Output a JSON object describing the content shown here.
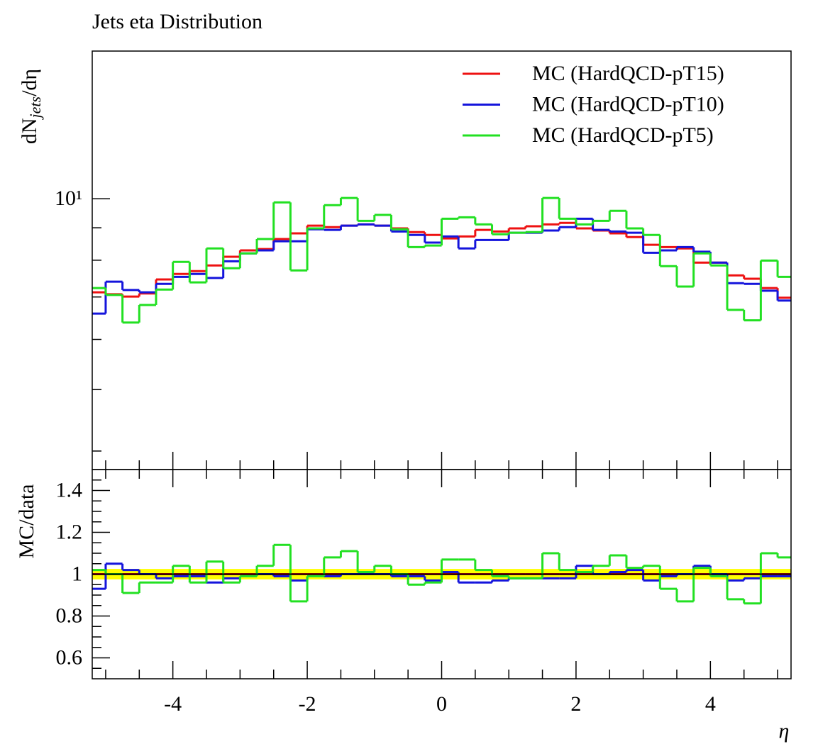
{
  "chart_data": [
    {
      "type": "histogram",
      "title": "Jets eta Distribution",
      "ylabel": {
        "main": "dN",
        "sub": "jets",
        "rest": "/dη"
      },
      "log_y": true,
      "legend": "top-right",
      "bins": [
        -5.2,
        -5,
        -4.75,
        -4.5,
        -4.25,
        -4,
        -3.75,
        -3.5,
        -3.25,
        -3,
        -2.75,
        -2.5,
        -2.25,
        -2,
        -1.75,
        -1.5,
        -1.25,
        -1,
        -0.75,
        -0.5,
        -0.25,
        0,
        0.25,
        0.5,
        0.75,
        1,
        1.25,
        1.5,
        1.75,
        2,
        2.25,
        2.5,
        2.75,
        3,
        3.25,
        3.5,
        3.75,
        4,
        4.25,
        4.5,
        4.75,
        5,
        5.2
      ],
      "xlim": [
        -5.2,
        5.2
      ],
      "xticks": [
        -4,
        -2,
        0,
        2,
        4
      ],
      "minor_xticks": [
        -5,
        -4.5,
        -3.5,
        -3,
        -2.5,
        -1.5,
        -1,
        -0.5,
        0.5,
        1,
        1.5,
        2.5,
        3,
        3.5,
        4.5,
        5
      ],
      "ylim": [
        3.74,
        17.1
      ],
      "yticks": [
        {
          "value": 10,
          "label": "10¹"
        }
      ],
      "minor_yticks": [
        4,
        5,
        6,
        7,
        8,
        9
      ],
      "series": [
        {
          "name": "MC (HardQCD-pT15)",
          "color": "#ee1111",
          "values": [
            7.12,
            7.07,
            7.01,
            7.09,
            7.46,
            7.61,
            7.69,
            7.85,
            8.1,
            8.29,
            8.33,
            8.64,
            8.82,
            9.07,
            9.02,
            9.07,
            9.11,
            9.07,
            8.98,
            8.86,
            8.77,
            8.66,
            8.72,
            8.93,
            8.88,
            8.98,
            9.05,
            9.11,
            9.16,
            8.98,
            8.91,
            8.82,
            8.7,
            8.46,
            8.39,
            8.35,
            7.93,
            7.93,
            7.57,
            7.48,
            7.23,
            6.98
          ]
        },
        {
          "name": "MC (HardQCD-pT10)",
          "color": "#1414dc",
          "values": [
            6.59,
            7.4,
            7.18,
            7.12,
            7.34,
            7.53,
            7.61,
            7.5,
            7.97,
            8.2,
            8.29,
            8.57,
            8.57,
            8.95,
            8.93,
            9.07,
            9.11,
            9.07,
            8.88,
            8.77,
            8.53,
            8.72,
            8.35,
            8.61,
            8.61,
            8.84,
            8.84,
            8.91,
            9.02,
            9.3,
            8.93,
            8.88,
            8.84,
            8.22,
            8.29,
            8.39,
            8.25,
            7.93,
            7.36,
            7.34,
            7.16,
            6.91
          ]
        },
        {
          "name": "MC (HardQCD-pT5)",
          "color": "#22e022",
          "values": [
            7.23,
            7.05,
            6.38,
            6.8,
            7.19,
            7.95,
            7.38,
            8.35,
            7.77,
            8.2,
            8.64,
            9.87,
            7.71,
            8.98,
            9.77,
            10.03,
            9.23,
            9.43,
            8.95,
            8.39,
            8.44,
            9.3,
            9.35,
            9.11,
            8.79,
            8.84,
            8.86,
            10.03,
            9.3,
            9.11,
            9.23,
            9.57,
            8.98,
            8.77,
            7.83,
            7.27,
            8.2,
            7.85,
            6.68,
            6.43,
            7.99,
            7.53
          ]
        }
      ]
    },
    {
      "type": "histogram",
      "ylabel": "MC/data",
      "xlabel": "η",
      "bins": [
        -5.2,
        -5,
        -4.75,
        -4.5,
        -4.25,
        -4,
        -3.75,
        -3.5,
        -3.25,
        -3,
        -2.75,
        -2.5,
        -2.25,
        -2,
        -1.75,
        -1.5,
        -1.25,
        -1,
        -0.75,
        -0.5,
        -0.25,
        0,
        0.25,
        0.5,
        0.75,
        1,
        1.25,
        1.5,
        1.75,
        2,
        2.25,
        2.5,
        2.75,
        3,
        3.25,
        3.5,
        3.75,
        4,
        4.25,
        4.5,
        4.75,
        5,
        5.2
      ],
      "xlim": [
        -5.2,
        5.2
      ],
      "xticks": [
        -4,
        -2,
        0,
        2,
        4
      ],
      "minor_xticks": [
        -5,
        -4.5,
        -3.5,
        -3,
        -2.5,
        -1.5,
        -1,
        -0.5,
        0.5,
        1,
        1.5,
        2.5,
        3,
        3.5,
        4.5,
        5
      ],
      "ylim": [
        0.5,
        1.5
      ],
      "yticks": [
        0.6,
        0.8,
        1,
        1.2,
        1.4
      ],
      "minor_yticks": [
        0.55,
        0.65,
        0.7,
        0.75,
        0.85,
        0.9,
        0.95,
        1.05,
        1.1,
        1.15,
        1.25,
        1.3,
        1.35,
        1.45
      ],
      "reference": 1,
      "band": [
        0.975,
        1.025
      ],
      "band_color": "#ffff00",
      "series": [
        {
          "color": "#ee1111",
          "values": [
            1,
            1,
            1,
            1,
            1,
            1,
            1,
            1,
            1,
            1,
            1,
            1,
            1,
            1,
            1,
            1,
            1,
            1,
            1,
            1,
            1,
            1,
            1,
            1,
            1,
            1,
            1,
            1,
            1,
            1,
            1,
            1,
            1,
            1,
            1,
            1,
            1,
            1,
            1,
            1,
            1,
            1
          ]
        },
        {
          "color": "#1414dc",
          "values": [
            0.93,
            1.05,
            1.02,
            1.0,
            0.98,
            0.99,
            0.99,
            0.96,
            0.98,
            0.99,
            1.0,
            0.99,
            0.97,
            0.99,
            0.99,
            1.0,
            1.0,
            1.0,
            0.99,
            0.99,
            0.97,
            1.01,
            0.96,
            0.96,
            0.97,
            0.98,
            0.98,
            0.98,
            0.98,
            1.04,
            1.0,
            1.01,
            1.02,
            0.97,
            0.99,
            1.0,
            1.04,
            1.0,
            0.97,
            0.98,
            0.99,
            0.99
          ]
        },
        {
          "color": "#22e022",
          "values": [
            1.02,
            1.0,
            0.91,
            0.96,
            0.96,
            1.04,
            0.96,
            1.06,
            0.96,
            0.99,
            1.04,
            1.14,
            0.87,
            0.99,
            1.08,
            1.11,
            1.01,
            1.04,
            1.0,
            0.95,
            0.96,
            1.07,
            1.07,
            1.02,
            0.99,
            0.98,
            0.98,
            1.1,
            1.02,
            1.01,
            1.04,
            1.09,
            1.03,
            1.04,
            0.93,
            0.87,
            1.03,
            0.99,
            0.88,
            0.86,
            1.1,
            1.08
          ]
        }
      ]
    }
  ]
}
